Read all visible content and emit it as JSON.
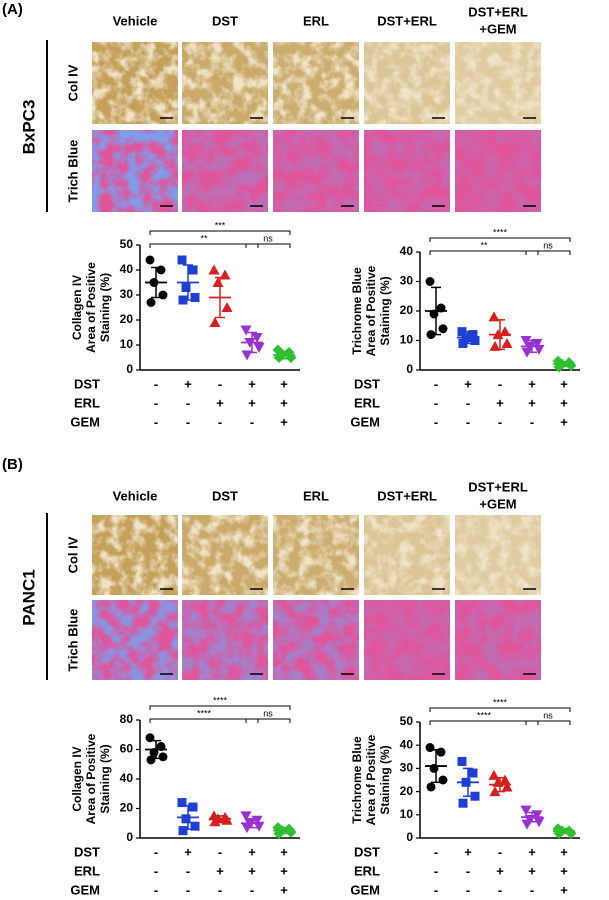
{
  "panels": [
    {
      "label": "(A)",
      "cell_line": "BxPC3",
      "rows": [
        "Col IV",
        "Trich Blue"
      ],
      "columns": [
        [
          "Vehicle"
        ],
        [
          "DST"
        ],
        [
          "ERL"
        ],
        [
          "DST+ERL"
        ],
        [
          "DST+ERL",
          "+GEM"
        ]
      ]
    },
    {
      "label": "(B)",
      "cell_line": "PANC1",
      "rows": [
        "Col IV",
        "Trich Blue"
      ],
      "columns": [
        [
          "Vehicle"
        ],
        [
          "DST"
        ],
        [
          "ERL"
        ],
        [
          "DST+ERL"
        ],
        [
          "DST+ERL",
          "+GEM"
        ]
      ]
    }
  ],
  "chart_data": [
    {
      "type": "dot",
      "ylabel": [
        "Collagen IV",
        "Area of Positive",
        "Staining (%)"
      ],
      "ylim": [
        0,
        50
      ],
      "yticks": [
        0,
        10,
        20,
        30,
        40,
        50
      ],
      "series": [
        {
          "color": "#000000",
          "marker": "circle",
          "values": [
            44,
            40,
            35,
            30,
            27
          ],
          "mean": 35,
          "sd": 6
        },
        {
          "color": "#1f3fd0",
          "marker": "square",
          "values": [
            44,
            40,
            33,
            29,
            28
          ],
          "mean": 35,
          "sd": 7
        },
        {
          "color": "#d62020",
          "marker": "triangle",
          "values": [
            40,
            38,
            35,
            25,
            19
          ],
          "mean": 29,
          "sd": 8
        },
        {
          "color": "#9b30d0",
          "marker": "tridown",
          "values": [
            16,
            13,
            11,
            9,
            6
          ],
          "mean": 11,
          "sd": 4
        },
        {
          "color": "#2fc02f",
          "marker": "diamond",
          "values": [
            8,
            7,
            6,
            5,
            5
          ],
          "mean": 6,
          "sd": 1.5
        }
      ],
      "treatments": [
        {
          "label": "DST",
          "signs": [
            "-",
            "+",
            "-",
            "+",
            "+"
          ]
        },
        {
          "label": "ERL",
          "signs": [
            "-",
            "-",
            "+",
            "+",
            "+"
          ]
        },
        {
          "label": "GEM",
          "signs": [
            "-",
            "-",
            "-",
            "-",
            "+"
          ]
        }
      ],
      "brackets": [
        {
          "from": 0,
          "to": 4,
          "label": "***"
        },
        {
          "from": 0,
          "to": 3,
          "label": "**"
        },
        {
          "from": 3,
          "to": 4,
          "label": "ns"
        }
      ]
    },
    {
      "type": "dot",
      "ylabel": [
        "Trichrome Blue",
        "Area of Positive",
        "Staining (%)"
      ],
      "ylim": [
        0,
        40
      ],
      "yticks": [
        0,
        10,
        20,
        30,
        40
      ],
      "series": [
        {
          "color": "#000000",
          "marker": "circle",
          "values": [
            30,
            21,
            19,
            14,
            12
          ],
          "mean": 20,
          "sd": 8
        },
        {
          "color": "#1f3fd0",
          "marker": "square",
          "values": [
            13,
            12,
            11,
            10,
            9
          ],
          "mean": 11,
          "sd": 2
        },
        {
          "color": "#d62020",
          "marker": "triangle",
          "values": [
            18,
            13,
            12,
            9,
            8
          ],
          "mean": 12,
          "sd": 5
        },
        {
          "color": "#9b30d0",
          "marker": "tridown",
          "values": [
            10,
            9,
            8,
            7,
            6
          ],
          "mean": 8,
          "sd": 2
        },
        {
          "color": "#2fc02f",
          "marker": "diamond",
          "values": [
            3,
            2.5,
            2,
            1.5,
            1
          ],
          "mean": 2,
          "sd": 0.8
        }
      ],
      "treatments": [
        {
          "label": "DST",
          "signs": [
            "-",
            "+",
            "-",
            "+",
            "+"
          ]
        },
        {
          "label": "ERL",
          "signs": [
            "-",
            "-",
            "+",
            "+",
            "+"
          ]
        },
        {
          "label": "GEM",
          "signs": [
            "-",
            "-",
            "-",
            "-",
            "+"
          ]
        }
      ],
      "brackets": [
        {
          "from": 0,
          "to": 4,
          "label": "****"
        },
        {
          "from": 0,
          "to": 3,
          "label": "**"
        },
        {
          "from": 3,
          "to": 4,
          "label": "ns"
        }
      ]
    },
    {
      "type": "dot",
      "ylabel": [
        "Collagen IV",
        "Area of Positive",
        "Staining (%)"
      ],
      "ylim": [
        0,
        80
      ],
      "yticks": [
        0,
        20,
        40,
        60,
        80
      ],
      "series": [
        {
          "color": "#000000",
          "marker": "circle",
          "values": [
            68,
            62,
            58,
            55,
            53
          ],
          "mean": 60,
          "sd": 6
        },
        {
          "color": "#1f3fd0",
          "marker": "square",
          "values": [
            24,
            21,
            13,
            8,
            5
          ],
          "mean": 14,
          "sd": 8
        },
        {
          "color": "#d62020",
          "marker": "triangle",
          "values": [
            15,
            14,
            13,
            12,
            11
          ],
          "mean": 13,
          "sd": 2
        },
        {
          "color": "#9b30d0",
          "marker": "tridown",
          "values": [
            15,
            12,
            10,
            8,
            7
          ],
          "mean": 10,
          "sd": 3
        },
        {
          "color": "#2fc02f",
          "marker": "diamond",
          "values": [
            7,
            6,
            5,
            4,
            3
          ],
          "mean": 5,
          "sd": 2
        }
      ],
      "treatments": [
        {
          "label": "DST",
          "signs": [
            "-",
            "+",
            "-",
            "+",
            "+"
          ]
        },
        {
          "label": "ERL",
          "signs": [
            "-",
            "-",
            "+",
            "+",
            "+"
          ]
        },
        {
          "label": "GEM",
          "signs": [
            "-",
            "-",
            "-",
            "-",
            "+"
          ]
        }
      ],
      "brackets": [
        {
          "from": 0,
          "to": 4,
          "label": "****"
        },
        {
          "from": 0,
          "to": 3,
          "label": "****"
        },
        {
          "from": 3,
          "to": 4,
          "label": "ns"
        }
      ]
    },
    {
      "type": "dot",
      "ylabel": [
        "Trichrome  Blue",
        "Area of Positive",
        "Staining (%)"
      ],
      "ylim": [
        0,
        50
      ],
      "yticks": [
        0,
        10,
        20,
        30,
        40,
        50
      ],
      "series": [
        {
          "color": "#000000",
          "marker": "circle",
          "values": [
            39,
            37,
            30,
            25,
            22
          ],
          "mean": 31,
          "sd": 7
        },
        {
          "color": "#1f3fd0",
          "marker": "square",
          "values": [
            33,
            28,
            24,
            18,
            15
          ],
          "mean": 24,
          "sd": 6
        },
        {
          "color": "#d62020",
          "marker": "triangle",
          "values": [
            27,
            25,
            24,
            22,
            20
          ],
          "mean": 23,
          "sd": 3
        },
        {
          "color": "#9b30d0",
          "marker": "tridown",
          "values": [
            12,
            10,
            8,
            7,
            6
          ],
          "mean": 9,
          "sd": 2
        },
        {
          "color": "#2fc02f",
          "marker": "diamond",
          "values": [
            4,
            3,
            3,
            2,
            2
          ],
          "mean": 3,
          "sd": 1
        }
      ],
      "treatments": [
        {
          "label": "DST",
          "signs": [
            "-",
            "+",
            "-",
            "+",
            "+"
          ]
        },
        {
          "label": "ERL",
          "signs": [
            "-",
            "-",
            "+",
            "+",
            "+"
          ]
        },
        {
          "label": "GEM",
          "signs": [
            "-",
            "-",
            "-",
            "-",
            "+"
          ]
        }
      ],
      "brackets": [
        {
          "from": 0,
          "to": 4,
          "label": "****"
        },
        {
          "from": 0,
          "to": 3,
          "label": "****"
        },
        {
          "from": 3,
          "to": 4,
          "label": "ns"
        }
      ]
    }
  ]
}
